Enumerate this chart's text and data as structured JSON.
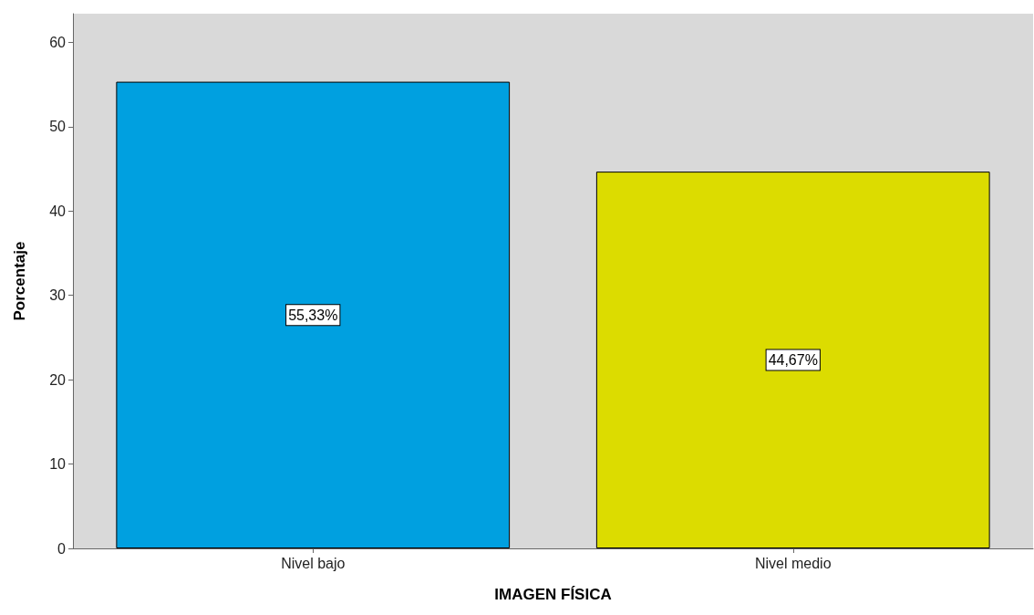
{
  "chart_data": {
    "type": "bar",
    "xlabel": "IMAGEN FÍSICA",
    "ylabel": "Porcentaje",
    "categories": [
      "Nivel bajo",
      "Nivel medio"
    ],
    "values": [
      55.33,
      44.67
    ],
    "colors": [
      "#00a0e0",
      "#dcdc00"
    ],
    "value_labels": [
      "55,33%",
      "44,67%"
    ],
    "ylim": [
      0,
      63.4
    ],
    "yticks": [
      0,
      10,
      20,
      30,
      40,
      50,
      60
    ],
    "grid": false
  }
}
